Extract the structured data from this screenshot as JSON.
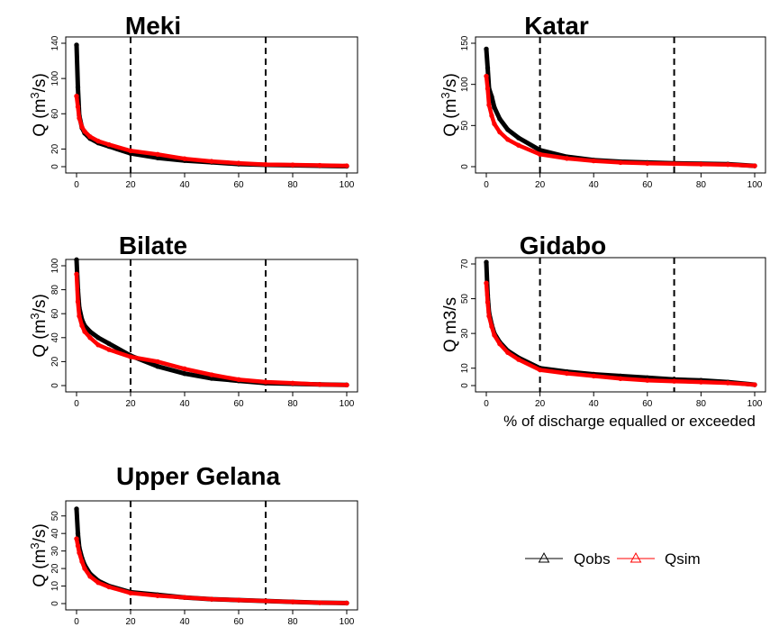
{
  "colors": {
    "obs": "#000000",
    "sim": "#ff0000"
  },
  "legend": {
    "obs_label": "Qobs",
    "sim_label": "Qsim",
    "marker": "triangle"
  },
  "chart_data": [
    {
      "type": "line",
      "title": "Meki",
      "ylabel": "Q (m3/s)",
      "ylabel_parts": {
        "base": "Q (m",
        "sup": "3",
        "end": "/s)"
      },
      "xlabel": "",
      "xlim": [
        0,
        100
      ],
      "ylim": [
        0,
        140
      ],
      "x_ticks": [
        0,
        20,
        40,
        60,
        80,
        100
      ],
      "y_ticks": [
        0,
        20,
        60,
        100,
        140
      ],
      "vlines": [
        20,
        70
      ],
      "x": [
        0,
        0.5,
        1,
        2,
        3,
        5,
        8,
        12,
        20,
        30,
        40,
        50,
        60,
        70,
        80,
        90,
        100
      ],
      "series": [
        {
          "name": "Qobs",
          "values": [
            138,
            90,
            58,
            44,
            38,
            32,
            27,
            23,
            15,
            10,
            7,
            5,
            3,
            2,
            1.5,
            1,
            0.5
          ]
        },
        {
          "name": "Qsim",
          "values": [
            80,
            68,
            55,
            45,
            40,
            34,
            29,
            25,
            18,
            14,
            9,
            6,
            4,
            2.5,
            2,
            1.5,
            1
          ]
        }
      ]
    },
    {
      "type": "line",
      "title": "Katar",
      "ylabel": "Q (m3/s)",
      "ylabel_parts": {
        "base": "Q (m",
        "sup": "3",
        "end": "/s)"
      },
      "xlabel": "",
      "xlim": [
        0,
        100
      ],
      "ylim": [
        0,
        150
      ],
      "x_ticks": [
        0,
        20,
        40,
        60,
        80,
        100
      ],
      "y_ticks": [
        0,
        50,
        100,
        150
      ],
      "vlines": [
        20,
        70
      ],
      "x": [
        0,
        0.5,
        1,
        2,
        3,
        5,
        8,
        12,
        20,
        30,
        40,
        50,
        60,
        70,
        80,
        90,
        100
      ],
      "series": [
        {
          "name": "Qobs",
          "values": [
            143,
            120,
            95,
            85,
            72,
            58,
            45,
            35,
            20,
            12,
            8,
            6,
            5,
            4,
            3.5,
            3,
            1
          ]
        },
        {
          "name": "Qsim",
          "values": [
            110,
            95,
            75,
            62,
            52,
            42,
            33,
            26,
            15,
            10,
            7,
            5,
            4,
            3.5,
            3,
            2.5,
            1
          ]
        }
      ]
    },
    {
      "type": "line",
      "title": "Bilate",
      "ylabel": "Q (m3/s)",
      "ylabel_parts": {
        "base": "Q (m",
        "sup": "3",
        "end": "/s)"
      },
      "xlabel": "",
      "xlim": [
        0,
        100
      ],
      "ylim": [
        0,
        100
      ],
      "x_ticks": [
        0,
        20,
        40,
        60,
        80,
        100
      ],
      "y_ticks": [
        0,
        20,
        40,
        60,
        80,
        100
      ],
      "vlines": [
        20,
        70
      ],
      "x": [
        0,
        0.5,
        1,
        2,
        3,
        5,
        8,
        12,
        20,
        30,
        40,
        50,
        60,
        70,
        80,
        90,
        100
      ],
      "series": [
        {
          "name": "Qobs",
          "values": [
            105,
            80,
            65,
            55,
            50,
            45,
            40,
            35,
            25,
            16,
            10,
            6,
            4,
            2,
            1.5,
            1,
            0.5
          ]
        },
        {
          "name": "Qsim",
          "values": [
            93,
            70,
            58,
            50,
            45,
            40,
            34,
            30,
            24,
            20,
            14,
            9,
            5,
            3,
            2,
            1,
            0.5
          ]
        }
      ]
    },
    {
      "type": "line",
      "title": "Gidabo",
      "ylabel": "Q m3/s",
      "ylabel_parts": {
        "base": "Q m3/s",
        "sup": "",
        "end": ""
      },
      "xlabel": "% of discharge equalled or exceeded",
      "xlim": [
        0,
        100
      ],
      "ylim": [
        0,
        70
      ],
      "x_ticks": [
        0,
        20,
        40,
        60,
        80,
        100
      ],
      "y_ticks": [
        0,
        10,
        30,
        50,
        70
      ],
      "vlines": [
        20,
        70
      ],
      "x": [
        0,
        0.5,
        1,
        2,
        3,
        5,
        8,
        12,
        20,
        30,
        40,
        50,
        60,
        70,
        80,
        90,
        100
      ],
      "series": [
        {
          "name": "Qobs",
          "values": [
            71,
            52,
            42,
            35,
            30,
            25,
            20,
            16,
            10,
            8,
            6.5,
            5.5,
            4.5,
            3.5,
            3,
            2,
            0.5
          ]
        },
        {
          "name": "Qsim",
          "values": [
            59,
            48,
            40,
            34,
            29,
            24,
            19,
            15,
            9,
            7,
            5.5,
            4,
            3,
            2.5,
            2,
            1.5,
            0.5
          ]
        }
      ]
    },
    {
      "type": "line",
      "title": "Upper Gelana",
      "ylabel": "Q (m3/s)",
      "ylabel_parts": {
        "base": "Q (m",
        "sup": "3",
        "end": "/s)"
      },
      "xlabel": "",
      "xlim": [
        0,
        100
      ],
      "ylim": [
        0,
        55
      ],
      "x_ticks": [
        0,
        20,
        40,
        60,
        80,
        100
      ],
      "y_ticks": [
        0,
        10,
        20,
        30,
        40,
        50
      ],
      "vlines": [
        20,
        70
      ],
      "x": [
        0,
        0.5,
        1,
        2,
        3,
        5,
        8,
        12,
        20,
        30,
        40,
        50,
        60,
        70,
        80,
        90,
        100
      ],
      "series": [
        {
          "name": "Qobs",
          "values": [
            54,
            40,
            32,
            26,
            22,
            17,
            13,
            10,
            6.5,
            5,
            3.5,
            2.5,
            2,
            1.5,
            1,
            0.5,
            0.3
          ]
        },
        {
          "name": "Qsim",
          "values": [
            37,
            33,
            29,
            24,
            20,
            15.5,
            12,
            9.5,
            6,
            4.5,
            3.5,
            2.5,
            2,
            1.5,
            1,
            0.5,
            0.3
          ]
        }
      ]
    }
  ]
}
